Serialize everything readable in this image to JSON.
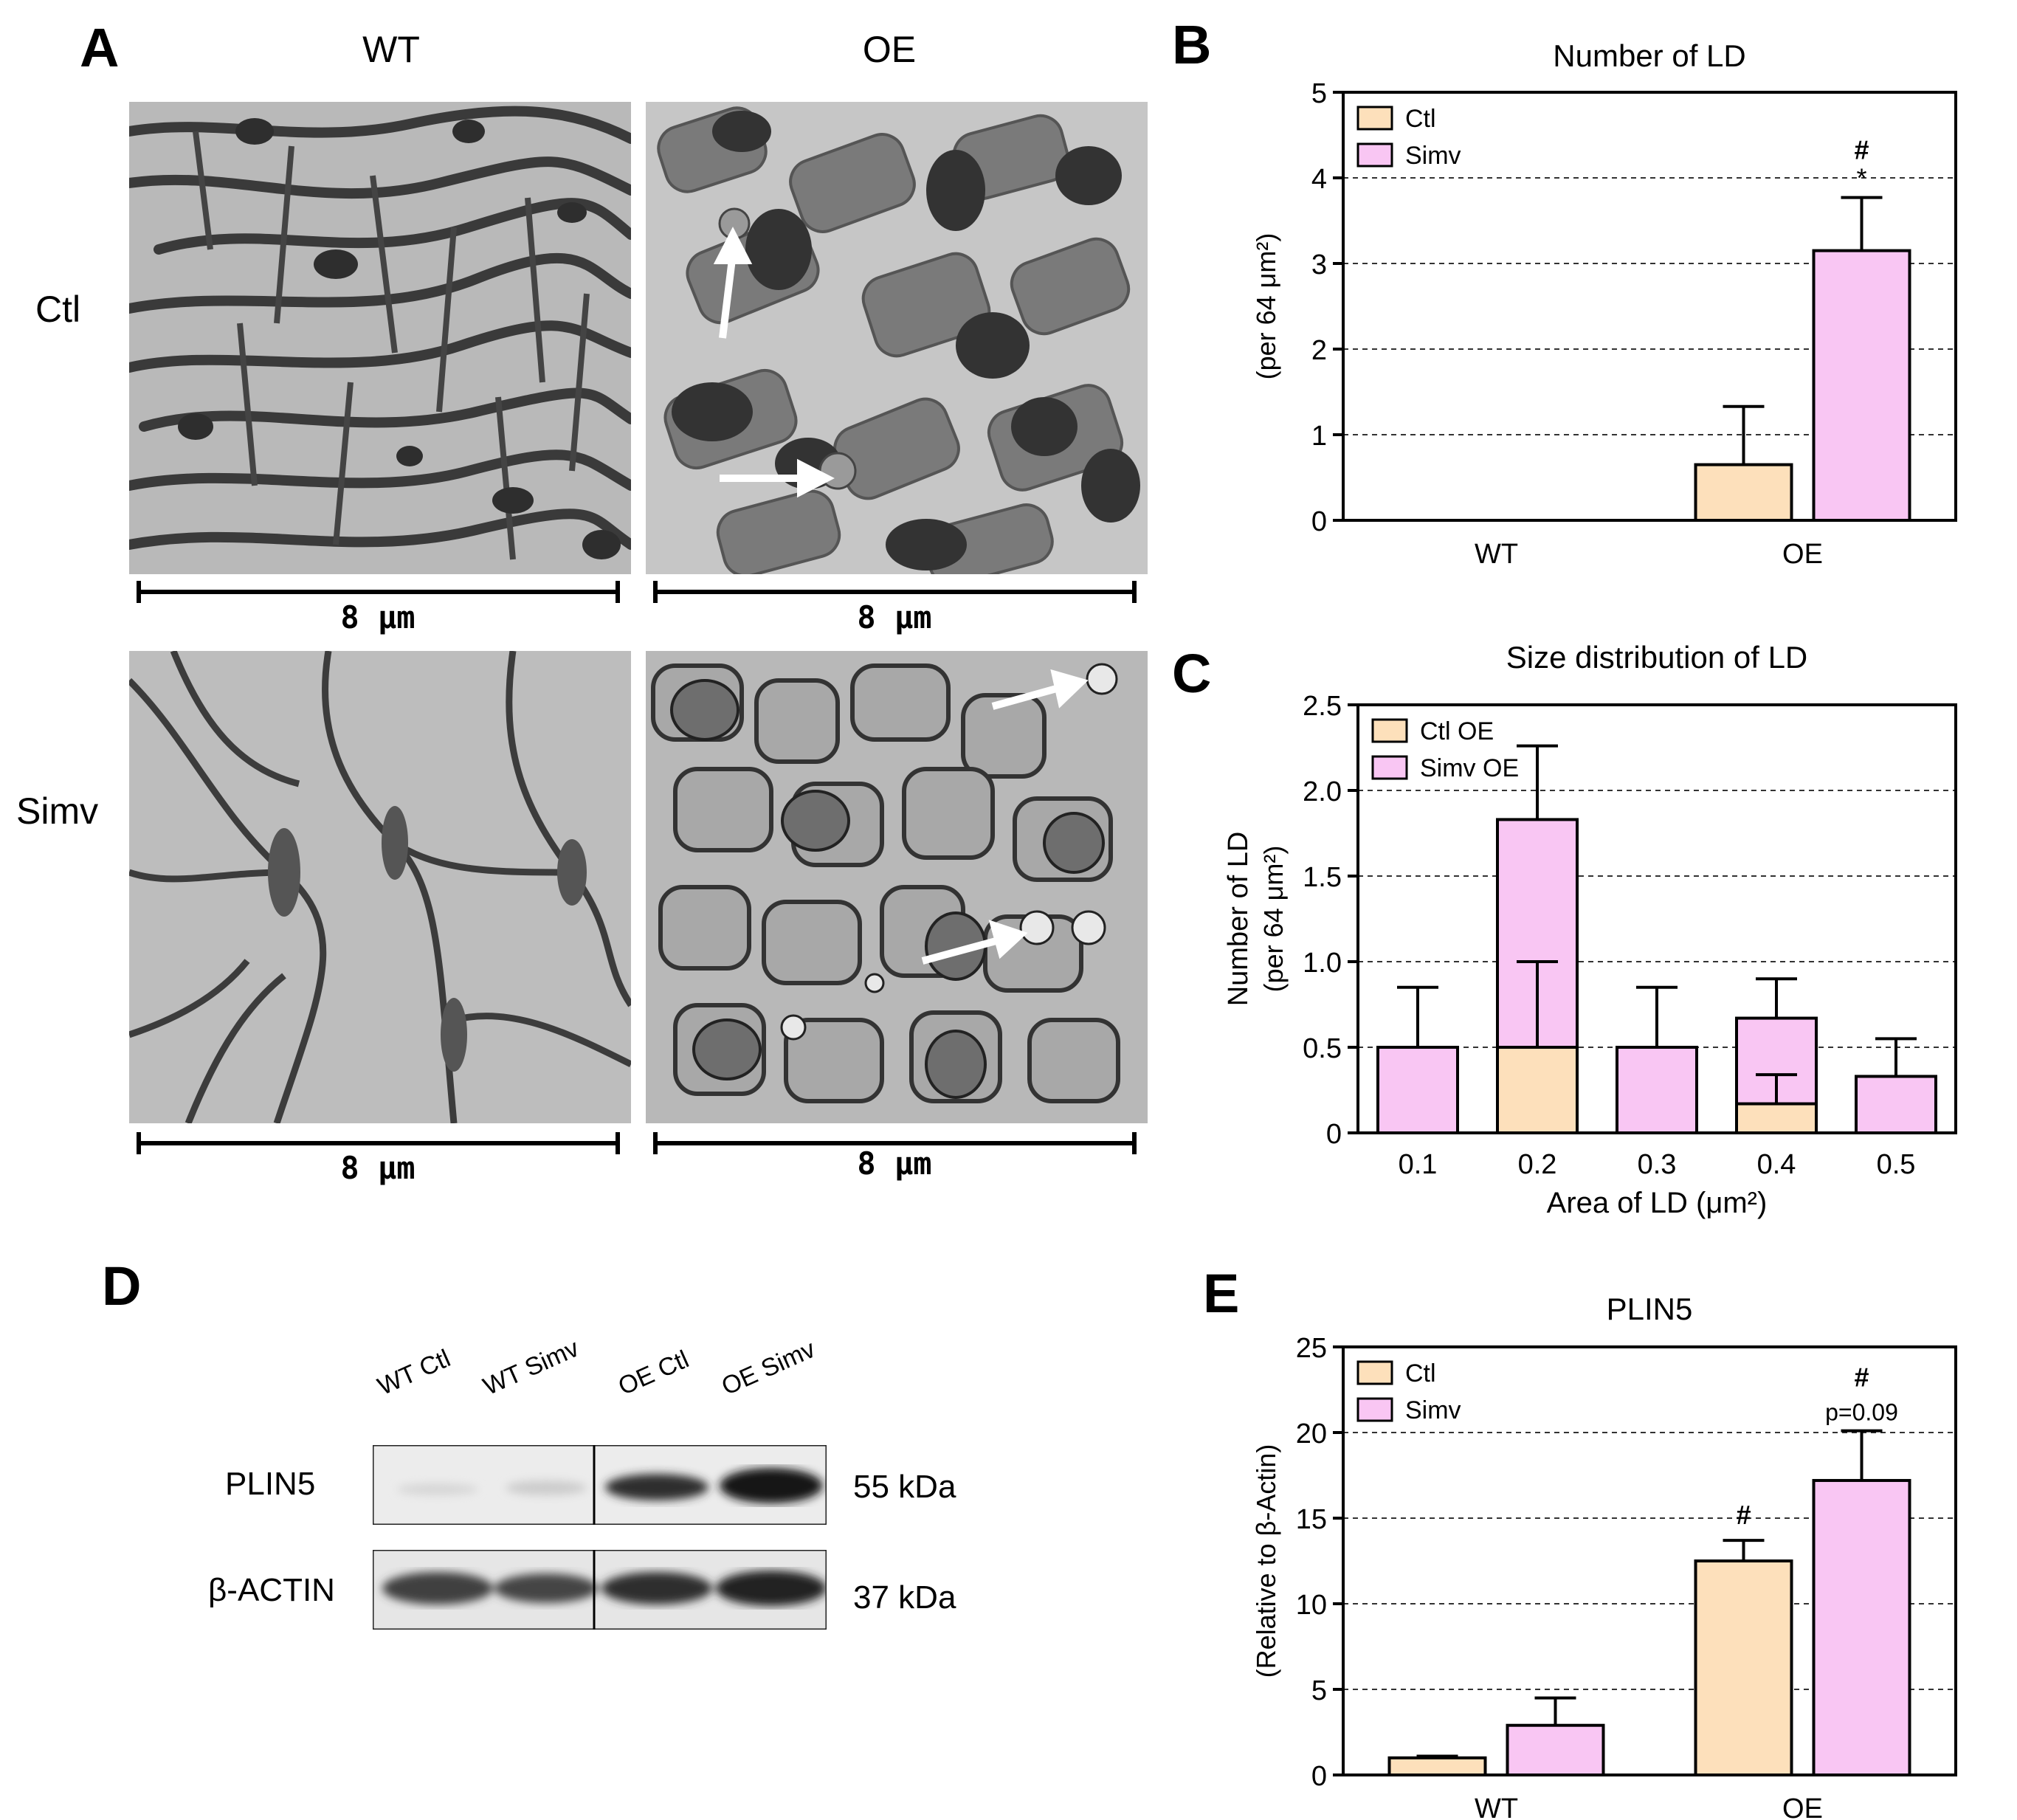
{
  "panelA": {
    "letter": "A",
    "col_wt": "WT",
    "col_oe": "OE",
    "row_ctl": "Ctl",
    "row_simv": "Simv",
    "scale_label": "8 μm"
  },
  "panelB": {
    "letter": "B",
    "chart_data": {
      "type": "bar",
      "title": "Number of LD",
      "ylabel": "(per 64 μm²)",
      "xlabel": "",
      "categories": [
        "WT",
        "OE"
      ],
      "ylim": [
        0,
        5
      ],
      "yticks": [
        "0",
        "1",
        "2",
        "3",
        "4",
        "5"
      ],
      "grid": "horizontal dashed",
      "legend_position": "top-left",
      "series": [
        {
          "name": "Ctl",
          "values": [
            0,
            0.65
          ],
          "errors": [
            0,
            0.68
          ],
          "color": "#fde0bb"
        },
        {
          "name": "Simv",
          "values": [
            0,
            3.15
          ],
          "errors": [
            0,
            0.62
          ],
          "color": "#f9c6f3"
        }
      ],
      "annotations": [
        {
          "series": "Simv",
          "category": "OE",
          "text": "#"
        },
        {
          "series": "Simv",
          "category": "OE",
          "text": "*"
        }
      ]
    }
  },
  "panelC": {
    "letter": "C",
    "chart_data": {
      "type": "bar",
      "stacked_overlay": true,
      "title": "Size distribution of LD",
      "ylabel_line1": "Number of LD",
      "ylabel_line2": "(per 64 μm²)",
      "xlabel": "Area of LD (μm²)",
      "categories": [
        "0.1",
        "0.2",
        "0.3",
        "0.4",
        "0.5"
      ],
      "ylim": [
        0,
        2.5
      ],
      "yticks": [
        "0",
        "0.5",
        "1.0",
        "1.5",
        "2.0",
        "2.5"
      ],
      "grid": "horizontal dashed",
      "legend_position": "top-left",
      "series": [
        {
          "name": "Ctl OE",
          "values": [
            0,
            0.5,
            0,
            0.17,
            0
          ],
          "errors": [
            0,
            0.5,
            0,
            0.17,
            0
          ],
          "color": "#fde0bb"
        },
        {
          "name": "Simv OE",
          "values": [
            0.5,
            1.83,
            0.5,
            0.67,
            0.33
          ],
          "errors": [
            0.35,
            0.43,
            0.35,
            0.23,
            0.22
          ],
          "color": "#f9c6f3"
        }
      ]
    }
  },
  "panelD": {
    "letter": "D",
    "lanes": [
      "WT Ctl",
      "WT Simv",
      "OE Ctl",
      "OE Simv"
    ],
    "rows": [
      {
        "protein": "PLIN5",
        "size": "55 kDa"
      },
      {
        "protein": "β-ACTIN",
        "size": "37 kDa"
      }
    ]
  },
  "panelE": {
    "letter": "E",
    "chart_data": {
      "type": "bar",
      "title": "PLIN5",
      "ylabel": "(Relative to β-Actin)",
      "xlabel": "",
      "categories": [
        "WT",
        "OE"
      ],
      "ylim": [
        0,
        25
      ],
      "yticks": [
        "0",
        "5",
        "10",
        "15",
        "20",
        "25"
      ],
      "grid": "horizontal dashed",
      "legend_position": "top-left",
      "series": [
        {
          "name": "Ctl",
          "values": [
            1.0,
            12.5
          ],
          "errors": [
            0.1,
            1.2
          ],
          "color": "#fde0bb"
        },
        {
          "name": "Simv",
          "values": [
            2.9,
            17.2
          ],
          "errors": [
            1.6,
            2.9
          ],
          "color": "#f9c6f3"
        }
      ],
      "annotations": [
        {
          "series": "Ctl",
          "category": "OE",
          "text": "#"
        },
        {
          "series": "Simv",
          "category": "OE",
          "text": "#"
        },
        {
          "series": "Simv",
          "category": "OE",
          "text": "p=0.09"
        }
      ]
    }
  }
}
